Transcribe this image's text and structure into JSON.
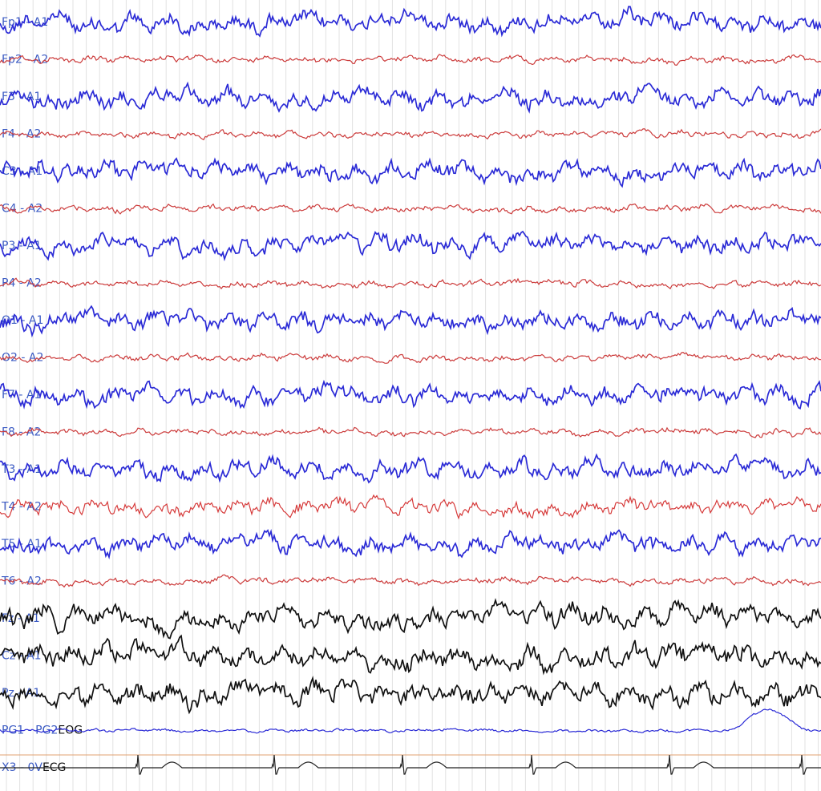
{
  "channels": [
    {
      "label": "Fp1 - A1",
      "color": "#2b2bd6"
    },
    {
      "label": "Fp2 - A2",
      "color": "#cc3b3b"
    },
    {
      "label": "F3 - A1",
      "color": "#2b2bd6"
    },
    {
      "label": "F4 - A2",
      "color": "#cc3b3b"
    },
    {
      "label": "C3 - A1",
      "color": "#2b2bd6"
    },
    {
      "label": "C4 - A2",
      "color": "#cc3b3b"
    },
    {
      "label": "P3 - A1",
      "color": "#2b2bd6"
    },
    {
      "label": "P4 - A2",
      "color": "#cc3b3b"
    },
    {
      "label": "O1 - A1",
      "color": "#2b2bd6"
    },
    {
      "label": "O2 - A2",
      "color": "#cc3b3b"
    },
    {
      "label": "F7 - A1",
      "color": "#2b2bd6"
    },
    {
      "label": "F8 - A2",
      "color": "#cc3b3b"
    },
    {
      "label": "T3 - A1",
      "color": "#2b2bd6"
    },
    {
      "label": "T4 - A2",
      "color": "#d63a3a"
    },
    {
      "label": "T5 - A1",
      "color": "#2b2bd6"
    },
    {
      "label": "T6 - A2",
      "color": "#cc3b3b"
    },
    {
      "label": "Fz - A1",
      "color": "#111111"
    },
    {
      "label": "Cz - A1",
      "color": "#111111"
    },
    {
      "label": "Pz - A1",
      "color": "#111111"
    },
    {
      "label": "PG1 - PG2",
      "kind": "EOG",
      "color": "#2b2bd6"
    },
    {
      "label": "X3 - 0V",
      "kind": "ECG",
      "color": "#222222"
    }
  ]
}
